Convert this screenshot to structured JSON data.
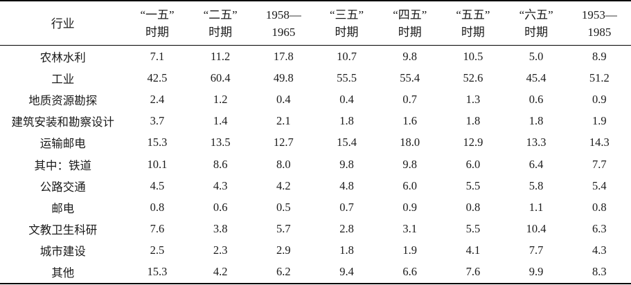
{
  "table": {
    "header": [
      [
        "行业"
      ],
      [
        "“一五”",
        "时期"
      ],
      [
        "“二五”",
        "时期"
      ],
      [
        "1958—",
        "1965"
      ],
      [
        "“三五”",
        "时期"
      ],
      [
        "“四五”",
        "时期"
      ],
      [
        "“五五”",
        "时期"
      ],
      [
        "“六五”",
        "时期"
      ],
      [
        "1953—",
        "1985"
      ]
    ],
    "rows": [
      [
        "农林水利",
        "7.1",
        "11.2",
        "17.8",
        "10.7",
        "9.8",
        "10.5",
        "5.0",
        "8.9"
      ],
      [
        "工业",
        "42.5",
        "60.4",
        "49.8",
        "55.5",
        "55.4",
        "52.6",
        "45.4",
        "51.2"
      ],
      [
        "地质资源勘探",
        "2.4",
        "1.2",
        "0.4",
        "0.4",
        "0.7",
        "1.3",
        "0.6",
        "0.9"
      ],
      [
        "建筑安装和勘察设计",
        "3.7",
        "1.4",
        "2.1",
        "1.8",
        "1.6",
        "1.8",
        "1.8",
        "1.9"
      ],
      [
        "运输邮电",
        "15.3",
        "13.5",
        "12.7",
        "15.4",
        "18.0",
        "12.9",
        "13.3",
        "14.3"
      ],
      [
        "其中：铁道",
        "10.1",
        "8.6",
        "8.0",
        "9.8",
        "9.8",
        "6.0",
        "6.4",
        "7.7"
      ],
      [
        "公路交通",
        "4.5",
        "4.3",
        "4.2",
        "4.8",
        "6.0",
        "5.5",
        "5.8",
        "5.4"
      ],
      [
        "邮电",
        "0.8",
        "0.6",
        "0.5",
        "0.7",
        "0.9",
        "0.8",
        "1.1",
        "0.8"
      ],
      [
        "文教卫生科研",
        "7.6",
        "3.8",
        "5.7",
        "2.8",
        "3.1",
        "5.5",
        "10.4",
        "6.3"
      ],
      [
        "城市建设",
        "2.5",
        "2.3",
        "2.9",
        "1.8",
        "1.9",
        "4.1",
        "7.7",
        "4.3"
      ],
      [
        "其他",
        "15.3",
        "4.2",
        "6.2",
        "9.4",
        "6.6",
        "7.6",
        "9.9",
        "8.3"
      ]
    ]
  }
}
